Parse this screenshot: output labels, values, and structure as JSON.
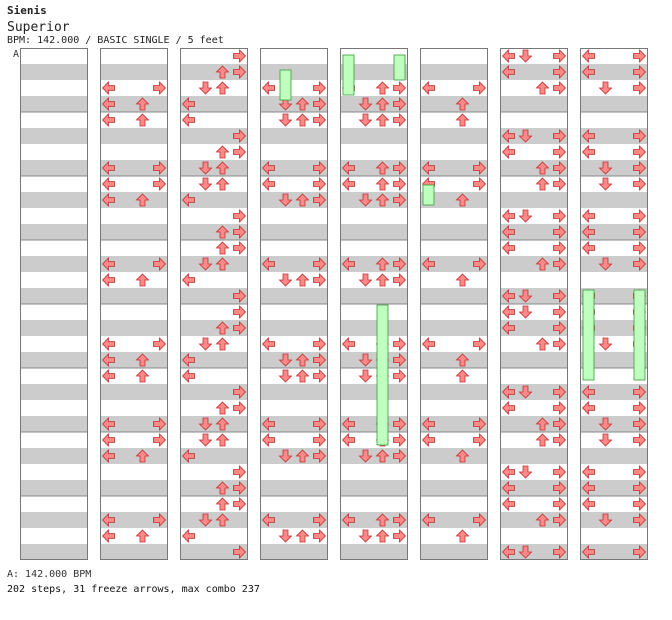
{
  "song": {
    "artist": "Sienis",
    "title": "Superior",
    "info": "BPM: 142.000 / BASIC SINGLE / 5 feet"
  },
  "chart_data": {
    "type": "step-chart",
    "section_marker": "A",
    "columns": 8,
    "measures_per_column": 8,
    "lanes": 4,
    "rows_per_measure": 4,
    "arrow_color": "#ff8888",
    "freeze_color": "#bfffbf",
    "stripe_color": "#cccccc",
    "notes": [
      [],
      [
        [
          0,
          2,
          0
        ],
        [
          0,
          2,
          3
        ],
        [
          0,
          3,
          0
        ],
        [
          0,
          3,
          2
        ]
      ],
      [
        [
          0,
          0,
          3
        ],
        [
          0,
          1,
          2
        ],
        [
          0,
          1,
          3
        ],
        [
          0,
          2,
          1
        ],
        [
          0,
          2,
          2
        ],
        [
          0,
          3,
          0
        ]
      ],
      [
        [
          0,
          2,
          0
        ],
        [
          0,
          2,
          3
        ],
        [
          0,
          3,
          1
        ],
        [
          0,
          3,
          2
        ],
        [
          0,
          3,
          3
        ]
      ],
      [
        [
          0,
          2,
          0
        ],
        [
          0,
          2,
          2
        ],
        [
          0,
          2,
          3
        ],
        [
          0,
          3,
          1
        ],
        [
          0,
          3,
          2
        ],
        [
          0,
          3,
          3
        ]
      ],
      [
        [
          0,
          2,
          0
        ],
        [
          0,
          2,
          3
        ],
        [
          0,
          3,
          2
        ]
      ],
      [
        [
          0,
          0,
          0
        ],
        [
          0,
          0,
          1
        ],
        [
          0,
          0,
          3
        ],
        [
          0,
          1,
          0
        ],
        [
          0,
          1,
          3
        ],
        [
          0,
          2,
          2
        ],
        [
          0,
          2,
          3
        ]
      ],
      [
        [
          0,
          0,
          0
        ],
        [
          0,
          0,
          3
        ],
        [
          0,
          1,
          0
        ],
        [
          0,
          1,
          3
        ],
        [
          0,
          2,
          1
        ],
        [
          0,
          2,
          3
        ]
      ]
    ],
    "footer_bpm": "A: 142.000 BPM",
    "footer_stats": "202 steps, 31 freeze arrows, max combo 237"
  }
}
